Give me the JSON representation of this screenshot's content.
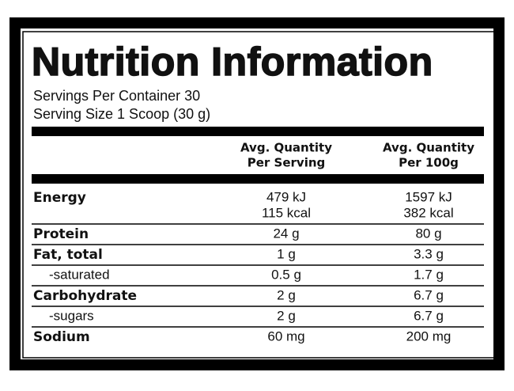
{
  "header": {
    "title": "Nutrition Information",
    "servings_per_container": "Servings Per Container 30",
    "serving_size": "Serving Size 1 Scoop (30 g)"
  },
  "table": {
    "headers": [
      [
        "Avg. Quantity",
        "Per Serving"
      ],
      [
        "Avg. Quantity",
        "Per 100g"
      ]
    ],
    "rows": [
      [
        "Energy",
        [
          "479 kJ",
          "115 kcal"
        ],
        [
          "1597 kJ",
          "382 kcal"
        ]
      ],
      [
        "Protein",
        [
          "24 g"
        ],
        [
          "80 g"
        ]
      ],
      [
        "Fat, total",
        [
          "1 g"
        ],
        [
          "3.3 g"
        ]
      ],
      [
        "-saturated",
        [
          "0.5 g"
        ],
        [
          "1.7 g"
        ]
      ],
      [
        "Carbohydrate",
        [
          "2 g"
        ],
        [
          "6.7 g"
        ]
      ],
      [
        "-sugars",
        [
          "2 g"
        ],
        [
          "6.7 g"
        ]
      ],
      [
        "Sodium",
        [
          "60 mg"
        ],
        [
          "200 mg"
        ]
      ]
    ]
  }
}
